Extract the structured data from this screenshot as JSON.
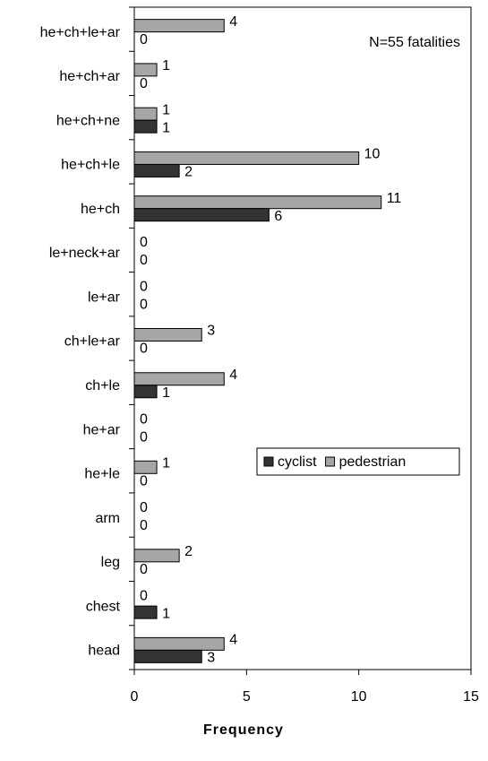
{
  "chart_data": {
    "type": "barh",
    "categories": [
      "he+ch+le+ar",
      "he+ch+ar",
      "he+ch+ne",
      "he+ch+le",
      "he+ch",
      "le+neck+ar",
      "le+ar",
      "ch+le+ar",
      "ch+le",
      "he+ar",
      "he+le",
      "arm",
      "leg",
      "chest",
      "head"
    ],
    "series": [
      {
        "name": "cyclist",
        "color": "#333333",
        "values": [
          0,
          0,
          1,
          2,
          6,
          0,
          0,
          0,
          1,
          0,
          0,
          0,
          0,
          1,
          3
        ]
      },
      {
        "name": "pedestrian",
        "color": "#a6a6a6",
        "values": [
          4,
          1,
          1,
          10,
          11,
          0,
          0,
          3,
          4,
          0,
          1,
          0,
          2,
          0,
          4
        ]
      }
    ],
    "xlabel": "Frequency",
    "annotation": "N=55 fatalities",
    "xlim": [
      0,
      15
    ],
    "xticks": [
      0,
      5,
      10,
      15
    ],
    "legend": "center-right"
  }
}
